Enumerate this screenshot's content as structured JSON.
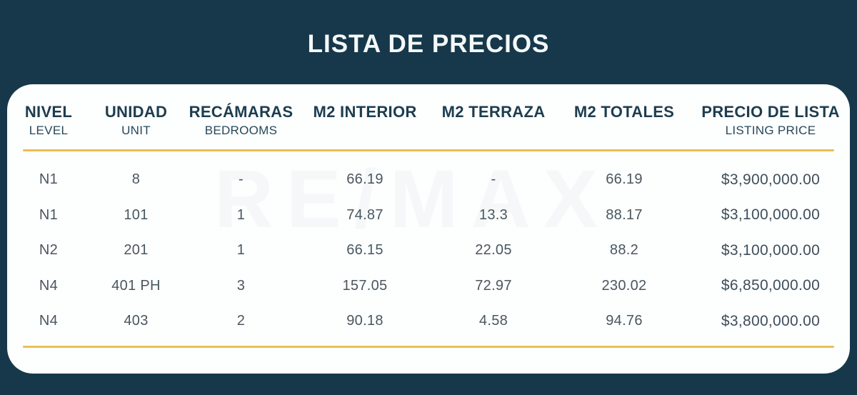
{
  "title": "LISTA DE PRECIOS",
  "watermark": "RE/MAX",
  "colors": {
    "background": "#16384a",
    "card": "#fdfefe",
    "header_text": "#1d3d4f",
    "data_text": "#49575f",
    "accent_line": "#eac054"
  },
  "table": {
    "columns": [
      {
        "label": "NIVEL",
        "sublabel": "LEVEL"
      },
      {
        "label": "UNIDAD",
        "sublabel": "UNIT"
      },
      {
        "label": "RECÁMARAS",
        "sublabel": "BEDROOMS"
      },
      {
        "label": "M2 INTERIOR",
        "sublabel": ""
      },
      {
        "label": "M2 TERRAZA",
        "sublabel": ""
      },
      {
        "label": "M2 TOTALES",
        "sublabel": ""
      },
      {
        "label": "PRECIO DE LISTA",
        "sublabel": "LISTING PRICE"
      }
    ],
    "rows": [
      [
        "N1",
        "8",
        "-",
        "66.19",
        "-",
        "66.19",
        "$3,900,000.00"
      ],
      [
        "N1",
        "101",
        "1",
        "74.87",
        "13.3",
        "88.17",
        "$3,100,000.00"
      ],
      [
        "N2",
        "201",
        "1",
        "66.15",
        "22.05",
        "88.2",
        "$3,100,000.00"
      ],
      [
        "N4",
        "401 PH",
        "3",
        "157.05",
        "72.97",
        "230.02",
        "$6,850,000.00"
      ],
      [
        "N4",
        "403",
        "2",
        "90.18",
        "4.58",
        "94.76",
        "$3,800,000.00"
      ]
    ]
  }
}
